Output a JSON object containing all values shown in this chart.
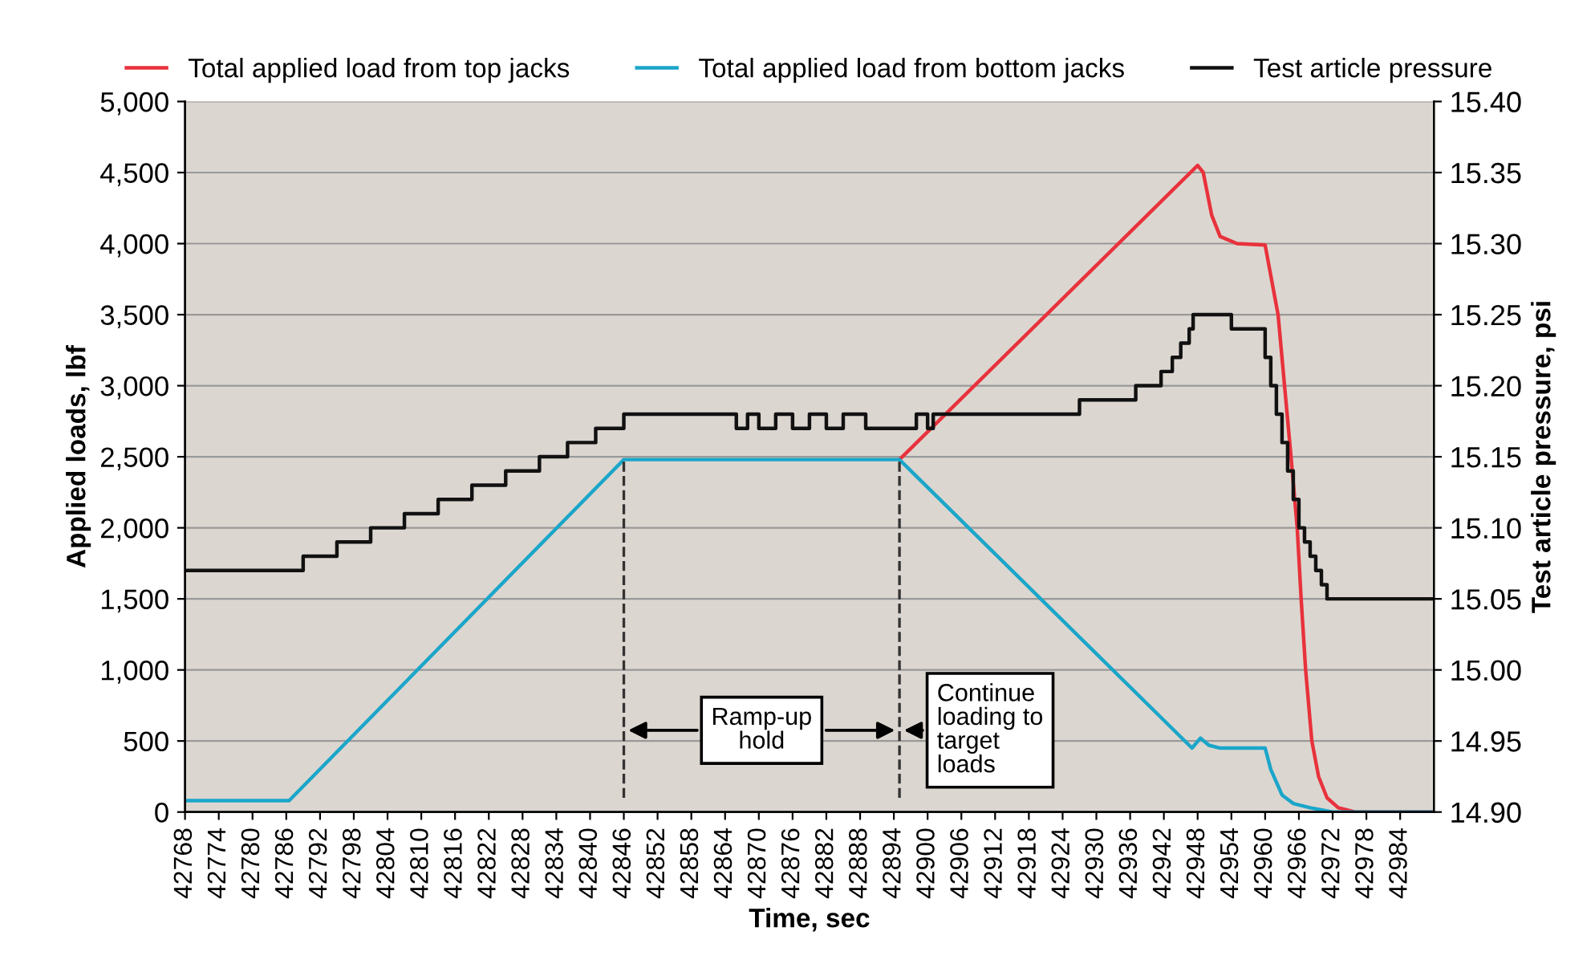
{
  "chart_data": {
    "type": "line",
    "xlabel": "Time, sec",
    "ylabel": "Applied loads, lbf",
    "y2label": "Test article pressure, psi",
    "xlim": [
      42768,
      42990
    ],
    "xticks": [
      42768,
      42774,
      42780,
      42786,
      42792,
      42798,
      42804,
      42810,
      42816,
      42822,
      42828,
      42834,
      42840,
      42846,
      42852,
      42858,
      42864,
      42870,
      42876,
      42882,
      42888,
      42894,
      42900,
      42906,
      42912,
      42918,
      42924,
      42930,
      42936,
      42942,
      42948,
      42954,
      42960,
      42966,
      42972,
      42978,
      42984
    ],
    "ylim": [
      0,
      5000
    ],
    "yticks": [
      0,
      {
        "value": 500,
        "label": "500"
      },
      {
        "value": 1000,
        "label": "1,000"
      },
      {
        "value": 1500,
        "label": "1,500"
      },
      {
        "value": 2000,
        "label": "2,000"
      },
      {
        "value": 2500,
        "label": "2,500"
      },
      {
        "value": 3000,
        "label": "3,000"
      },
      {
        "value": 3500,
        "label": "3,500"
      },
      {
        "value": 4000,
        "label": "4,000"
      },
      {
        "value": 4500,
        "label": "4,500"
      },
      {
        "value": 5000,
        "label": "5,000"
      }
    ],
    "y2lim": [
      14.9,
      15.4
    ],
    "y2ticks": [
      {
        "value": 14.9,
        "label": "14.90"
      },
      {
        "value": 14.95,
        "label": "14.95"
      },
      {
        "value": 15.0,
        "label": "15.00"
      },
      {
        "value": 15.05,
        "label": "15.05"
      },
      {
        "value": 15.1,
        "label": "15.10"
      },
      {
        "value": 15.15,
        "label": "15.15"
      },
      {
        "value": 15.2,
        "label": "15.20"
      },
      {
        "value": 15.25,
        "label": "15.25"
      },
      {
        "value": 15.3,
        "label": "15.30"
      },
      {
        "value": 15.35,
        "label": "15.35"
      },
      {
        "value": 15.4,
        "label": "15.40"
      }
    ],
    "grid": "y",
    "legend": "top",
    "marker": "none",
    "line_style": "solid",
    "series": [
      {
        "name": "Total applied load from top jacks",
        "color": "#e8323c",
        "x": [
          42895,
          42948,
          42949,
          42950.5,
          42952,
          42955,
          42960,
          42962.3,
          42964.6,
          42965.7,
          42966.4,
          42967.2,
          42968.3,
          42969.5,
          42971,
          42973,
          42976,
          42990
        ],
        "values": [
          2480,
          4550,
          4500,
          4200,
          4050,
          4000,
          3990,
          3500,
          2500,
          2000,
          1500,
          1000,
          500,
          250,
          100,
          30,
          0,
          0
        ]
      },
      {
        "name": "Total applied load from bottom jacks",
        "color": "#1ba6c9",
        "x": [
          42768,
          42786.5,
          42846,
          42895,
          42947,
          42948.5,
          42950,
          42952,
          42960,
          42961,
          42963,
          42965,
          42968,
          42972,
          42990
        ],
        "values": [
          80,
          80,
          2480,
          2480,
          450,
          520,
          470,
          450,
          450,
          300,
          120,
          60,
          30,
          0,
          0
        ]
      },
      {
        "name": "Test article pressure",
        "color": "#111111",
        "type": "step",
        "axis": "y2",
        "x": [
          42768,
          42789,
          42795,
          42801,
          42807,
          42813,
          42819,
          42825,
          42831,
          42836,
          42841,
          42846,
          42866,
          42868,
          42870,
          42873,
          42876,
          42879,
          42882,
          42885,
          42889,
          42898,
          42900,
          42901,
          42927,
          42937,
          42941.5,
          42943.5,
          42945,
          42946.5,
          42947.2,
          42954,
          42960,
          42961,
          42962,
          42963,
          42964,
          42965,
          42966,
          42967,
          42968,
          42969,
          42970,
          42971,
          42990
        ],
        "values": [
          15.07,
          15.08,
          15.09,
          15.1,
          15.11,
          15.12,
          15.13,
          15.14,
          15.15,
          15.16,
          15.17,
          15.18,
          15.17,
          15.18,
          15.17,
          15.18,
          15.17,
          15.18,
          15.17,
          15.18,
          15.17,
          15.18,
          15.17,
          15.18,
          15.19,
          15.2,
          15.21,
          15.22,
          15.23,
          15.24,
          15.25,
          15.24,
          15.22,
          15.2,
          15.18,
          15.16,
          15.14,
          15.12,
          15.1,
          15.09,
          15.08,
          15.07,
          15.06,
          15.05,
          15.05
        ]
      }
    ],
    "ref_lines": [
      {
        "axis": "x",
        "value": 42846,
        "line_style": "dashed",
        "color": "#333333"
      },
      {
        "axis": "x",
        "value": 42895,
        "line_style": "dashed",
        "color": "#333333"
      }
    ],
    "annotations": [
      "Ramp-up\nhold",
      "Continue\nloading to\ntarget\nloads"
    ]
  }
}
